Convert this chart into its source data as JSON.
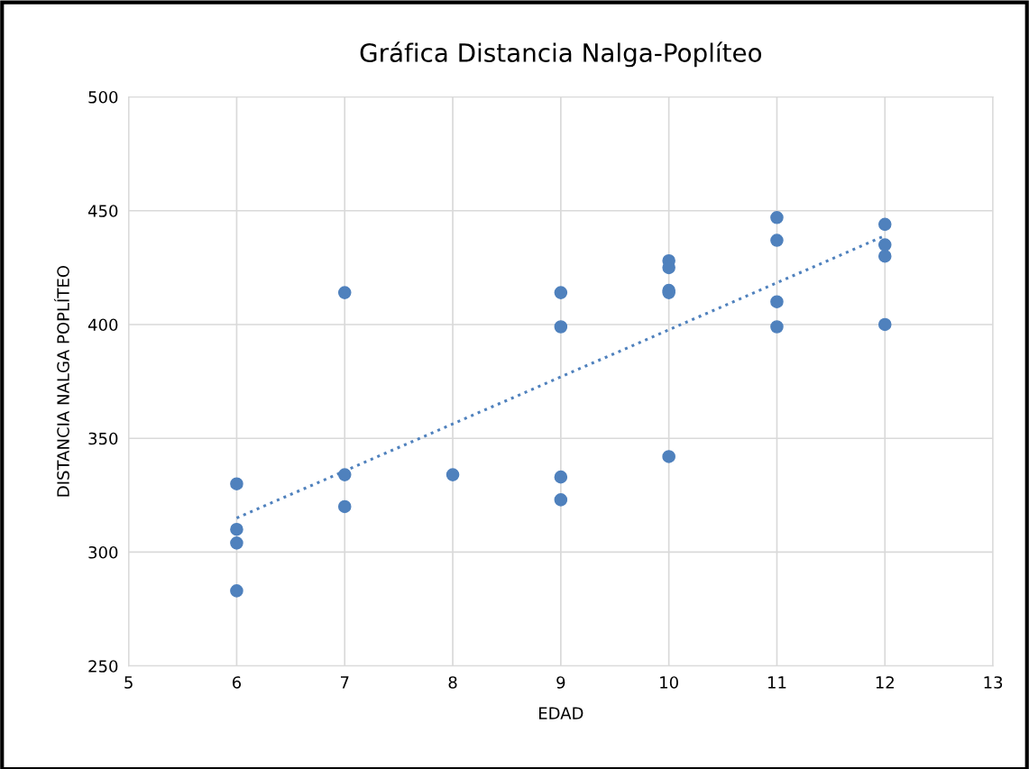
{
  "chart_data": {
    "type": "scatter",
    "title": "Gráfica Distancia Nalga-Poplíteo",
    "xlabel": "EDAD",
    "ylabel": "DISTANCIA NALGA POPLÍTEO",
    "xlim": [
      5,
      13
    ],
    "xticks": [
      5,
      6,
      7,
      8,
      9,
      10,
      11,
      12,
      13
    ],
    "ylim": [
      250,
      500
    ],
    "yticks": [
      250,
      300,
      350,
      400,
      450,
      500
    ],
    "grid": true,
    "marker": "circle",
    "series": [
      {
        "color": "#4f81bd",
        "x": [
          6,
          6,
          6,
          6,
          7,
          7,
          7,
          8,
          9,
          9,
          9,
          9,
          10,
          10,
          10,
          10,
          10,
          11,
          11,
          11,
          11,
          12,
          12,
          12,
          12
        ],
        "values": [
          330,
          310,
          304,
          283,
          414,
          334,
          320,
          334,
          414,
          399,
          333,
          323,
          428,
          425,
          415,
          414,
          342,
          447,
          437,
          410,
          399,
          444,
          435,
          430,
          400
        ]
      },
      {
        "type": "line",
        "color": "#4f81bd",
        "line_style": "dotted",
        "marker": "none",
        "x": [
          6,
          12
        ],
        "values": [
          315,
          439
        ]
      }
    ]
  }
}
